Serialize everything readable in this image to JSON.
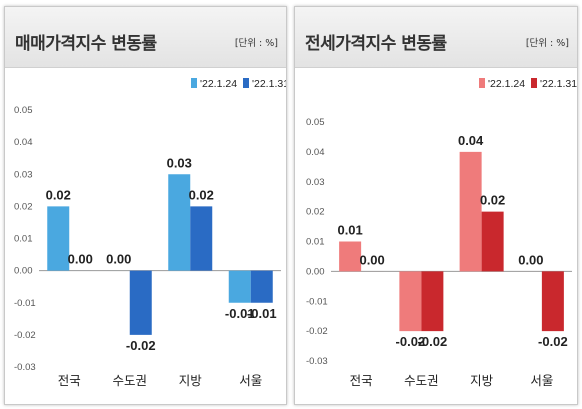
{
  "chart_data": [
    {
      "type": "bar",
      "title": "매매가격지수 변동률",
      "unit_label": "[단위 : %]",
      "categories": [
        "전국",
        "수도권",
        "지방",
        "서울"
      ],
      "series": [
        {
          "name": "'22.1.24",
          "color": "#4aa8e0",
          "values": [
            0.02,
            0.0,
            0.03,
            -0.01
          ]
        },
        {
          "name": "'22.1.31",
          "color": "#2a6bc4",
          "values": [
            0.0,
            -0.02,
            0.02,
            -0.01
          ]
        }
      ],
      "value_labels": [
        [
          "0.02",
          "0.00",
          "0.03",
          "-0.01"
        ],
        [
          "0.00",
          "-0.02",
          "0.02",
          "-0.01"
        ]
      ],
      "ylim": [
        -0.03,
        0.05
      ],
      "yticks": [
        "0.05",
        "0.04",
        "0.03",
        "0.02",
        "0.01",
        "0.00",
        "-0.01",
        "-0.02",
        "-0.03"
      ],
      "legend": "top-right",
      "grid": false
    },
    {
      "type": "bar",
      "title": "전세가격지수 변동률",
      "unit_label": "[단위 : %]",
      "categories": [
        "전국",
        "수도권",
        "지방",
        "서울"
      ],
      "series": [
        {
          "name": "'22.1.24",
          "color": "#ef7b7b",
          "values": [
            0.01,
            -0.02,
            0.04,
            0.0
          ]
        },
        {
          "name": "'22.1.31",
          "color": "#c9282d",
          "values": [
            0.0,
            -0.02,
            0.02,
            -0.02
          ]
        }
      ],
      "value_labels": [
        [
          "0.01",
          "-0.02",
          "0.04",
          "0.00"
        ],
        [
          "0.00",
          "-0.02",
          "0.02",
          "-0.02"
        ]
      ],
      "ylim": [
        -0.03,
        0.05
      ],
      "yticks": [
        "0.05",
        "0.04",
        "0.03",
        "0.02",
        "0.01",
        "0.00",
        "-0.01",
        "-0.02",
        "-0.03"
      ],
      "legend": "top-right",
      "grid": false
    }
  ]
}
